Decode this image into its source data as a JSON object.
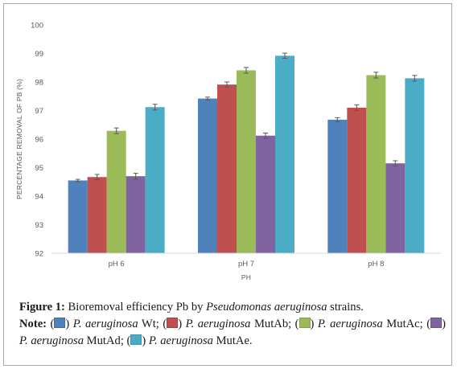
{
  "chart_data": {
    "type": "bar",
    "categories": [
      "pH 6",
      "pH 7",
      "pH 8"
    ],
    "xlabel": "PH",
    "ylabel": "PERCENTAGE REMOVAL OF PB  (%)",
    "ylim": [
      92,
      100
    ],
    "yticks": [
      "92",
      "93",
      "94",
      "95",
      "96",
      "97",
      "98",
      "99",
      "100"
    ],
    "grid": false,
    "error_bars": true,
    "series": [
      {
        "color": "#4f81bd",
        "values": [
          94.55,
          97.42,
          96.68
        ],
        "errors": [
          0.04,
          0.05,
          0.07
        ]
      },
      {
        "color": "#c0504d",
        "values": [
          94.67,
          97.91,
          97.1
        ],
        "errors": [
          0.09,
          0.09,
          0.1
        ]
      },
      {
        "color": "#9bbb59",
        "values": [
          96.29,
          98.41,
          98.24
        ],
        "errors": [
          0.1,
          0.1,
          0.1
        ]
      },
      {
        "color": "#8064a2",
        "values": [
          94.7,
          96.12,
          95.15
        ],
        "errors": [
          0.1,
          0.09,
          0.09
        ]
      },
      {
        "color": "#4bacc6",
        "values": [
          97.12,
          98.92,
          98.13
        ],
        "errors": [
          0.1,
          0.09,
          0.1
        ]
      }
    ]
  },
  "caption": {
    "figure_label": "Figure 1:",
    "title_prefix": "Bioremoval efficiency Pb by ",
    "title_species": "Pseudomonas aeruginosa",
    "title_suffix": " strains.",
    "note_label": "Note:",
    "legend": [
      {
        "color": "#4f81bd",
        "species": "P. aeruginosa",
        "strain": " Wt;"
      },
      {
        "color": "#c0504d",
        "species": "P. aeruginosa",
        "strain": " MutAb;"
      },
      {
        "color": "#9bbb59",
        "species": "P. aeruginosa",
        "strain": " MutAc;"
      },
      {
        "color": "#8064a2",
        "species": "P. aeruginosa",
        "strain": " MutAd;"
      },
      {
        "color": "#4bacc6",
        "species": "P. aeruginosa",
        "strain": " MutAe."
      }
    ]
  }
}
